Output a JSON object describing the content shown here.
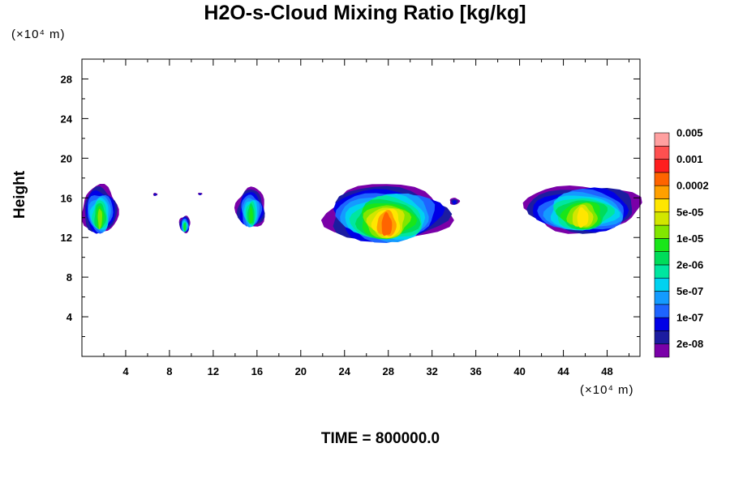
{
  "chart_data": {
    "type": "heatmap",
    "title": "H2O-s-Cloud Mixing Ratio [kg/kg]",
    "xlabel": "",
    "ylabel": "Height",
    "x_unit": "(×10⁴ m)",
    "y_unit": "(×10⁴ m)",
    "xlim": [
      0,
      51
    ],
    "ylim": [
      0,
      30
    ],
    "x_ticks": [
      "4",
      "8",
      "12",
      "16",
      "20",
      "24",
      "28",
      "32",
      "36",
      "40",
      "44",
      "48"
    ],
    "y_ticks": [
      "4",
      "8",
      "12",
      "16",
      "20",
      "24",
      "28"
    ],
    "grid": false,
    "colorbar": {
      "placement": "right",
      "colors": [
        "#7a00a8",
        "#1c1ca0",
        "#0000e6",
        "#1e64ff",
        "#149bff",
        "#00d2f0",
        "#00e6a0",
        "#00dc5a",
        "#19e619",
        "#82e600",
        "#d2e600",
        "#ffe600",
        "#ffa000",
        "#ff6400",
        "#ff1e1e",
        "#ff5050",
        "#ffa0a0"
      ],
      "labels": [
        "2e-08",
        "1e-07",
        "5e-07",
        "2e-06",
        "1e-05",
        "5e-05",
        "0.0002",
        "0.001",
        "0.005"
      ],
      "label_lowest_boundary_index": 1
    },
    "regions": [
      {
        "name": "left-edge-cloud",
        "base_km": 12.5,
        "top_km": 17.2,
        "x": [
          0,
          3.3
        ],
        "peak_level": 9
      },
      {
        "name": "speck-a",
        "base_km": 16.2,
        "top_km": 16.5,
        "x": [
          6.5,
          6.9
        ],
        "peak_level": 2
      },
      {
        "name": "speck-b",
        "base_km": 16.3,
        "top_km": 16.5,
        "x": [
          10.6,
          11.0
        ],
        "peak_level": 2
      },
      {
        "name": "small-cluster-9",
        "base_km": 12.5,
        "top_km": 14.2,
        "x": [
          8.9,
          9.9
        ],
        "peak_level": 8
      },
      {
        "name": "cloud-15",
        "base_km": 13.0,
        "top_km": 17.0,
        "x": [
          14.1,
          16.8
        ],
        "peak_level": 8
      },
      {
        "name": "large-cloud-28",
        "base_km": 11.6,
        "top_km": 17.3,
        "x": [
          22.2,
          33.5
        ],
        "peak_level": 13
      },
      {
        "name": "speck-34",
        "base_km": 15.3,
        "top_km": 16.0,
        "x": [
          33.6,
          34.5
        ],
        "peak_level": 2
      },
      {
        "name": "right-cloud",
        "base_km": 12.6,
        "top_km": 17.3,
        "x": [
          40.5,
          51
        ],
        "peak_level": 11
      }
    ]
  },
  "footer": {
    "time_label": "TIME = 800000.0"
  }
}
